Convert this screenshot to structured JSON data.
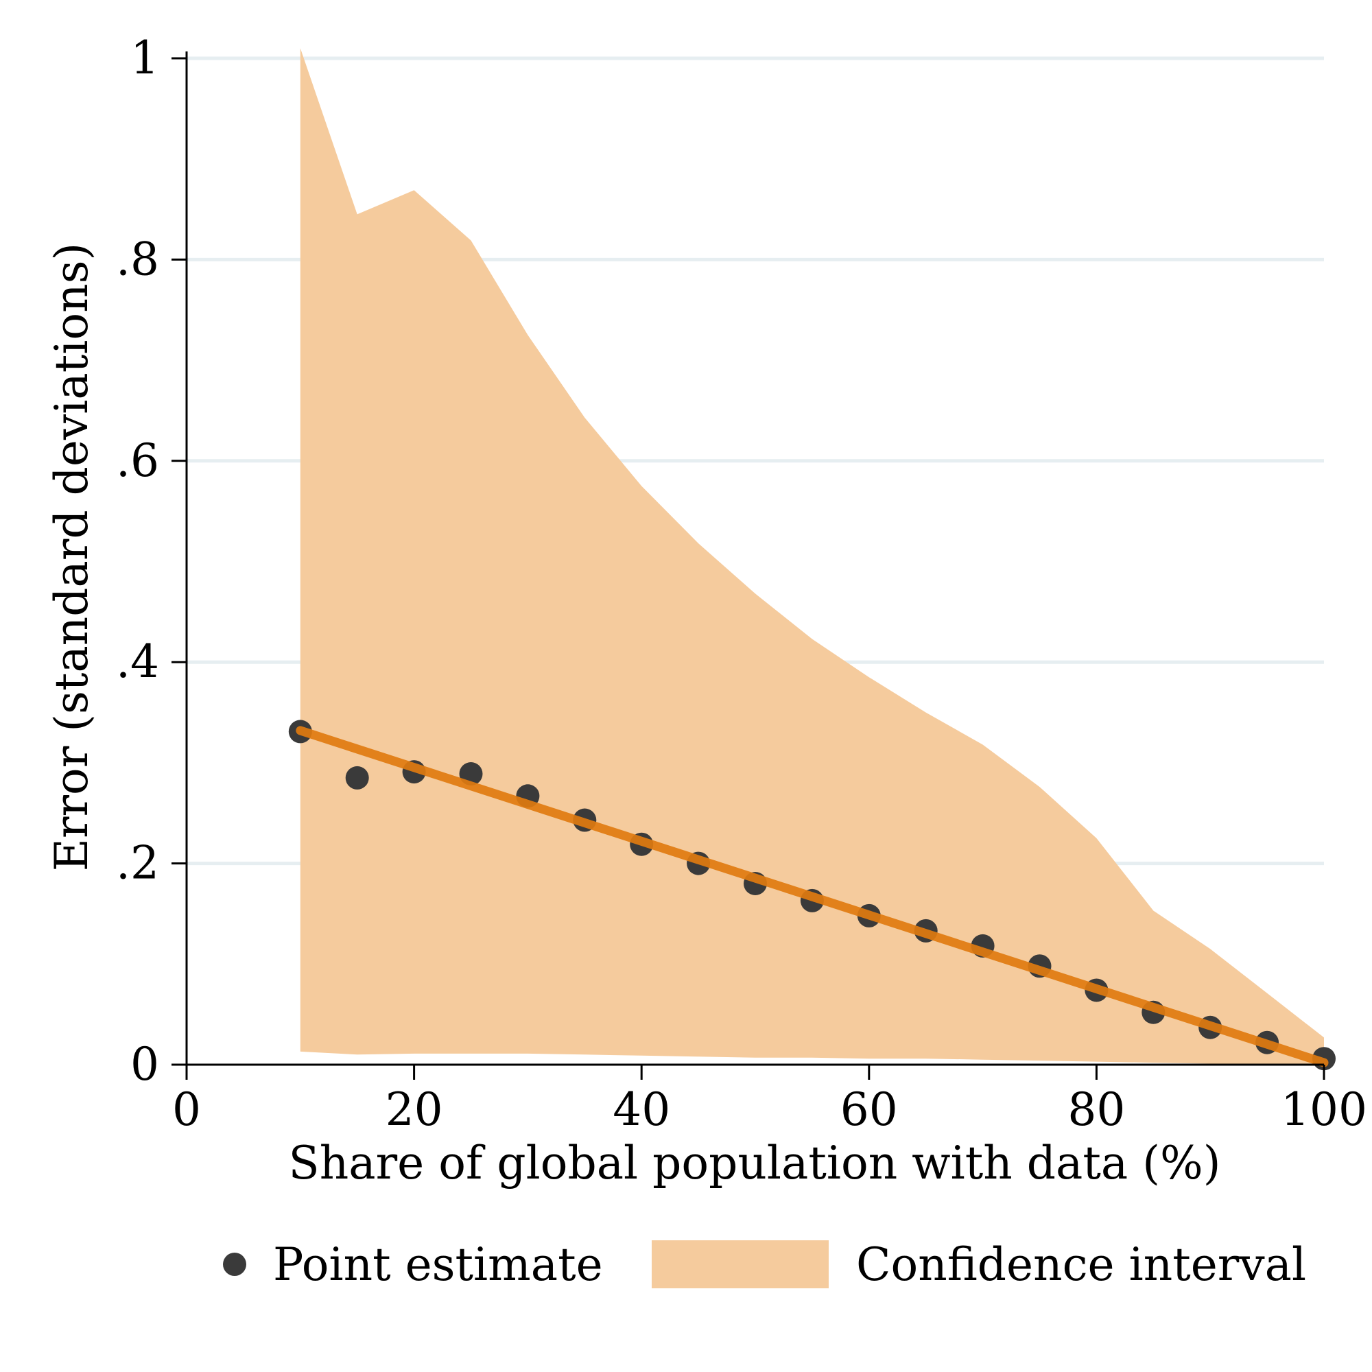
{
  "chart_data": {
    "type": "scatter",
    "xlabel": "Share of global population with data (%)",
    "ylabel": "Error (standard deviations)",
    "xlim": [
      0,
      100
    ],
    "ylim": [
      0,
      1
    ],
    "x_ticks": [
      0,
      20,
      40,
      60,
      80,
      100
    ],
    "x_tick_labels": [
      "0",
      "20",
      "40",
      "60",
      "80",
      "100"
    ],
    "y_ticks": [
      0,
      0.2,
      0.4,
      0.6,
      0.8,
      1
    ],
    "y_tick_labels": [
      "0",
      ".2",
      ".4",
      ".6",
      ".8",
      "1"
    ],
    "grid": "horizontal",
    "legend_position": "bottom",
    "x": [
      10,
      15,
      20,
      25,
      30,
      35,
      40,
      45,
      50,
      55,
      60,
      65,
      70,
      75,
      80,
      85,
      90,
      95,
      100
    ],
    "series": [
      {
        "name": "Point estimate",
        "type": "scatter",
        "color": "#3a3a3a",
        "values": [
          0.331,
          0.285,
          0.291,
          0.289,
          0.267,
          0.243,
          0.219,
          0.2,
          0.18,
          0.163,
          0.148,
          0.133,
          0.118,
          0.098,
          0.074,
          0.052,
          0.037,
          0.022,
          0.006
        ]
      },
      {
        "name": "Confidence interval",
        "type": "area",
        "color": "#f5cb9d",
        "upper": [
          1.01,
          0.845,
          0.869,
          0.819,
          0.725,
          0.643,
          0.575,
          0.518,
          0.468,
          0.423,
          0.385,
          0.35,
          0.318,
          0.276,
          0.225,
          0.153,
          0.115,
          0.071,
          0.027
        ],
        "lower": [
          0.013,
          0.01,
          0.011,
          0.011,
          0.011,
          0.01,
          0.009,
          0.008,
          0.007,
          0.007,
          0.006,
          0.006,
          0.005,
          0.004,
          0.003,
          0.002,
          0.001,
          0.001,
          0.0
        ]
      }
    ],
    "fit_line": {
      "color": "#e07b10",
      "x": [
        10,
        100
      ],
      "y": [
        0.332,
        0.002
      ]
    }
  }
}
